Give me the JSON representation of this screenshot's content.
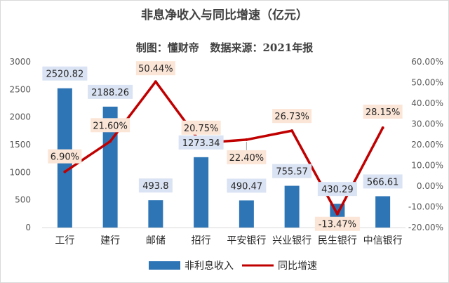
{
  "chart_data": {
    "type": "bar+line",
    "title": "非息净收入与同比增速（亿元）",
    "subtitle": "制图：懂财帝   数据来源：2021年报",
    "categories": [
      "工行",
      "建行",
      "邮储",
      "招行",
      "平安银行",
      "兴业银行",
      "民生银行",
      "中信银行"
    ],
    "series": [
      {
        "name": "非利息收入",
        "type": "bar",
        "axis": "left",
        "values": [
          2520.82,
          2188.26,
          493.8,
          1273.34,
          490.47,
          755.57,
          430.29,
          566.61
        ],
        "labels": [
          "2520.82",
          "2188.26",
          "493.8",
          "1273.34",
          "490.47",
          "755.57",
          "430.29",
          "566.61"
        ],
        "color": "#2e75b6"
      },
      {
        "name": "同比增速",
        "type": "line",
        "axis": "right",
        "values": [
          6.9,
          21.6,
          50.44,
          20.75,
          22.4,
          26.73,
          -13.47,
          28.15
        ],
        "labels": [
          "6.90%",
          "21.60%",
          "50.44%",
          "20.75%",
          "22.40%",
          "26.73%",
          "-13.47%",
          "28.15%"
        ],
        "color": "#c00000"
      }
    ],
    "y_left": {
      "min": 0,
      "max": 3000,
      "ticks": [
        "0",
        "500",
        "1000",
        "1500",
        "2000",
        "2500",
        "3000"
      ]
    },
    "y_right": {
      "min": -20,
      "max": 60,
      "ticks": [
        "-20.00%",
        "-10.00%",
        "0.00%",
        "10.00%",
        "20.00%",
        "30.00%",
        "40.00%",
        "50.00%",
        "60.00%"
      ]
    },
    "grid": false,
    "legend": "bottom",
    "bar_label_bg": "#dae3f3",
    "line_label_bg": "#fbe5d6"
  }
}
